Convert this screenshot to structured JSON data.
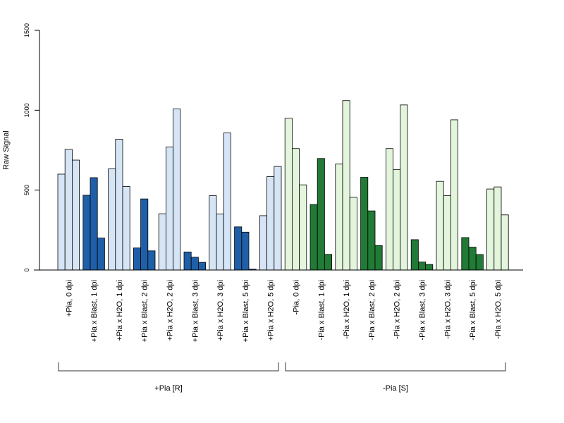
{
  "chart_data": {
    "type": "bar",
    "ylabel": "Raw Signal",
    "ylim": [
      0,
      1500
    ],
    "yticks": [
      "0",
      "500",
      "1000",
      "1500"
    ],
    "grid": false,
    "colors": {
      "blast_R": "#1f5fa8",
      "h2o_R": "#d6e5f5",
      "blast_S": "#217a35",
      "h2o_S": "#e3f5dc",
      "stroke": "#000000"
    },
    "categories": [
      {
        "label": "+Pia, 0 dpi",
        "group": "R",
        "kind": "h2o",
        "values": [
          600,
          755,
          688
        ]
      },
      {
        "label": "+Pia x Blast, 1 dpi",
        "group": "R",
        "kind": "blast",
        "values": [
          468,
          578,
          200
        ]
      },
      {
        "label": "+Pia x H2O, 1 dpi",
        "group": "R",
        "kind": "h2o",
        "values": [
          633,
          818,
          523
        ]
      },
      {
        "label": "+Pia x Blast, 2 dpi",
        "group": "R",
        "kind": "blast",
        "values": [
          138,
          445,
          120
        ]
      },
      {
        "label": "+Pia x H2O, 2 dpi",
        "group": "R",
        "kind": "h2o",
        "values": [
          352,
          770,
          1008
        ]
      },
      {
        "label": "+Pia x Blast, 3 dpi",
        "group": "R",
        "kind": "blast",
        "values": [
          113,
          80,
          48
        ]
      },
      {
        "label": "+Pia x H2O, 3 dpi",
        "group": "R",
        "kind": "h2o",
        "values": [
          465,
          350,
          858
        ]
      },
      {
        "label": "+Pia x Blast, 5 dpi",
        "group": "R",
        "kind": "blast",
        "values": [
          270,
          237,
          5
        ]
      },
      {
        "label": "+Pia x H2O, 5 dpi",
        "group": "R",
        "kind": "h2o",
        "values": [
          340,
          585,
          648
        ]
      },
      {
        "label": "-Pia, 0 dpi",
        "group": "S",
        "kind": "h2o",
        "values": [
          950,
          760,
          533
        ]
      },
      {
        "label": "-Pia x Blast, 1 dpi",
        "group": "S",
        "kind": "blast",
        "values": [
          410,
          698,
          98
        ]
      },
      {
        "label": "-Pia x H2O, 1 dpi",
        "group": "S",
        "kind": "h2o",
        "values": [
          663,
          1060,
          455
        ]
      },
      {
        "label": "-Pia x Blast, 2 dpi",
        "group": "S",
        "kind": "blast",
        "values": [
          580,
          370,
          153
        ]
      },
      {
        "label": "-Pia x H2O, 2 dpi",
        "group": "S",
        "kind": "h2o",
        "values": [
          760,
          628,
          1033
        ]
      },
      {
        "label": "-Pia x Blast, 3 dpi",
        "group": "S",
        "kind": "blast",
        "values": [
          190,
          50,
          35
        ]
      },
      {
        "label": "-Pia x H2O, 3 dpi",
        "group": "S",
        "kind": "h2o",
        "values": [
          555,
          465,
          940
        ]
      },
      {
        "label": "-Pia x Blast, 5 dpi",
        "group": "S",
        "kind": "blast",
        "values": [
          203,
          143,
          97
        ]
      },
      {
        "label": "-Pia x H2O, 5 dpi",
        "group": "S",
        "kind": "h2o",
        "values": [
          507,
          520,
          345
        ]
      }
    ],
    "groups": [
      {
        "id": "R",
        "label": "+Pia [R]"
      },
      {
        "id": "S",
        "label": "-Pia [S]"
      }
    ]
  }
}
